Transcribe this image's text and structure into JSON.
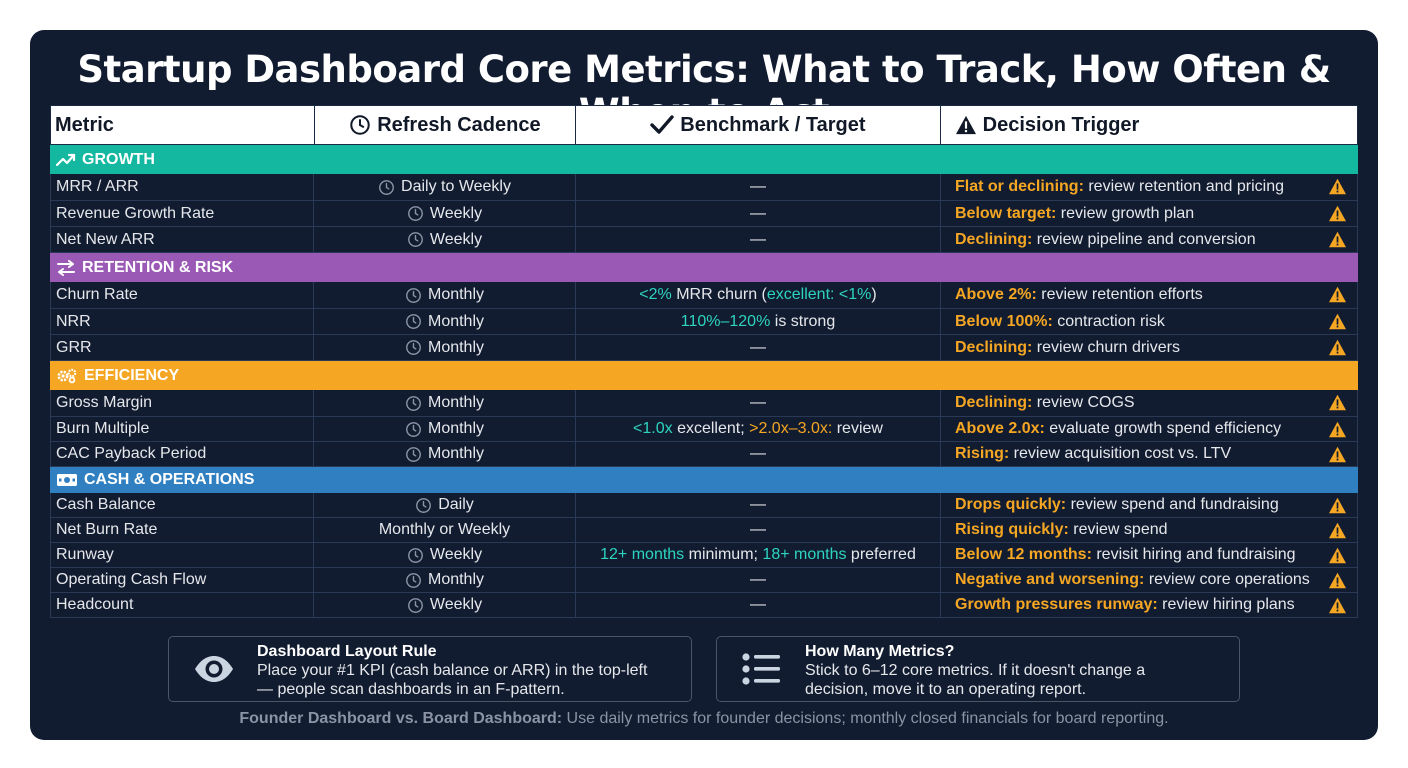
{
  "title": "Startup Dashboard Core Metrics: What to Track, How Often & When to Act",
  "headers": {
    "metric": "Metric",
    "cadence": "Refresh Cadence",
    "benchmark": "Benchmark / Target",
    "trigger": "Decision Trigger"
  },
  "colors": {
    "growth": "#14b8a0",
    "retention": "#9b59b6",
    "efficiency": "#f5a623",
    "cash": "#2f7fc1",
    "highlight": "#f5a623",
    "teal": "#2dd4bf",
    "background": "#121c30"
  },
  "sections": [
    {
      "name": "GROWTH",
      "icon": "trending-up-icon",
      "rows": [
        {
          "metric": "MRR / ARR",
          "cadence": "Daily to Weekly",
          "clock": true,
          "benchmark": [
            {
              "t": "—",
              "c": ""
            }
          ],
          "trigger_hl": "Flat or declining:",
          "trigger": " review retention and pricing"
        },
        {
          "metric": "Revenue Growth Rate",
          "cadence": "Weekly",
          "clock": true,
          "benchmark": [
            {
              "t": "—",
              "c": ""
            }
          ],
          "trigger_hl": "Below target:",
          "trigger": " review growth plan"
        },
        {
          "metric": "Net New ARR",
          "cadence": "Weekly",
          "clock": true,
          "benchmark": [
            {
              "t": "—",
              "c": ""
            }
          ],
          "trigger_hl": "Declining:",
          "trigger": " review pipeline and conversion"
        }
      ]
    },
    {
      "name": "RETENTION & RISK",
      "icon": "swap-arrows-icon",
      "rows": [
        {
          "metric": "Churn Rate",
          "cadence": "Monthly",
          "clock": true,
          "benchmark": [
            {
              "t": "<2%",
              "c": "teal"
            },
            {
              "t": " MRR churn (",
              "c": ""
            },
            {
              "t": "excellent: <1%",
              "c": "teal"
            },
            {
              "t": ")",
              "c": ""
            }
          ],
          "trigger_hl": "Above 2%:",
          "trigger": " review retention efforts"
        },
        {
          "metric": "NRR",
          "cadence": "Monthly",
          "clock": true,
          "benchmark": [
            {
              "t": "110%–120%",
              "c": "teal"
            },
            {
              "t": " is strong",
              "c": ""
            }
          ],
          "trigger_hl": "Below 100%:",
          "trigger": " contraction risk"
        },
        {
          "metric": "GRR",
          "cadence": "Monthly",
          "clock": true,
          "benchmark": [
            {
              "t": "—",
              "c": ""
            }
          ],
          "trigger_hl": "Declining:",
          "trigger": " review churn drivers"
        }
      ]
    },
    {
      "name": "EFFICIENCY",
      "icon": "gears-icon",
      "rows": [
        {
          "metric": "Gross Margin",
          "cadence": "Monthly",
          "clock": true,
          "benchmark": [
            {
              "t": "—",
              "c": ""
            }
          ],
          "trigger_hl": "Declining:",
          "trigger": " review COGS"
        },
        {
          "metric": "Burn Multiple",
          "cadence": "Monthly",
          "clock": true,
          "benchmark": [
            {
              "t": "<1.0x",
              "c": "teal"
            },
            {
              "t": " excellent; ",
              "c": ""
            },
            {
              "t": ">2.0x–3.0x:",
              "c": "org"
            },
            {
              "t": " review",
              "c": ""
            }
          ],
          "trigger_hl": "Above 2.0x:",
          "trigger": " evaluate growth spend efficiency"
        },
        {
          "metric": "CAC Payback Period",
          "cadence": "Monthly",
          "clock": true,
          "benchmark": [
            {
              "t": "—",
              "c": ""
            }
          ],
          "trigger_hl": "Rising:",
          "trigger": " review acquisition cost vs. LTV"
        }
      ]
    },
    {
      "name": "CASH & OPERATIONS",
      "icon": "cash-icon",
      "rows": [
        {
          "metric": "Cash Balance",
          "cadence": "Daily",
          "clock": true,
          "benchmark": [
            {
              "t": "—",
              "c": ""
            }
          ],
          "trigger_hl": "Drops quickly:",
          "trigger": " review spend and fundraising"
        },
        {
          "metric": "Net Burn Rate",
          "cadence": "Monthly or Weekly",
          "clock": false,
          "benchmark": [
            {
              "t": "—",
              "c": ""
            }
          ],
          "trigger_hl": "Rising quickly:",
          "trigger": " review spend"
        },
        {
          "metric": "Runway",
          "cadence": "Weekly",
          "clock": true,
          "benchmark": [
            {
              "t": "12+ months",
              "c": "teal"
            },
            {
              "t": " minimum; ",
              "c": ""
            },
            {
              "t": "18+ months",
              "c": "teal"
            },
            {
              "t": " preferred",
              "c": ""
            }
          ],
          "trigger_hl": "Below 12 months:",
          "trigger": " revisit hiring and fundraising"
        },
        {
          "metric": "Operating Cash Flow",
          "cadence": "Monthly",
          "clock": true,
          "benchmark": [
            {
              "t": "—",
              "c": ""
            }
          ],
          "trigger_hl": "Negative and worsening:",
          "trigger": " review core operations"
        },
        {
          "metric": "Headcount",
          "cadence": "Weekly",
          "clock": true,
          "benchmark": [
            {
              "t": "—",
              "c": ""
            }
          ],
          "trigger_hl": "Growth pressures runway:",
          "trigger": " review hiring plans"
        }
      ]
    }
  ],
  "layout_rule": {
    "title": "Dashboard Layout Rule",
    "line1": "Place your #1 KPI (cash balance or ARR) in the top-left",
    "line2": "— people scan dashboards in an F-pattern.",
    "icon": "eye-icon"
  },
  "how_many": {
    "title": "How Many Metrics?",
    "line1": "Stick to 6–12 core metrics. If it doesn't change a",
    "line2": "decision, move it to an operating report.",
    "icon": "list-icon"
  },
  "footer": {
    "bold": "Founder Dashboard vs. Board Dashboard:",
    "text": " Use daily metrics for founder decisions; monthly closed financials for board reporting."
  }
}
